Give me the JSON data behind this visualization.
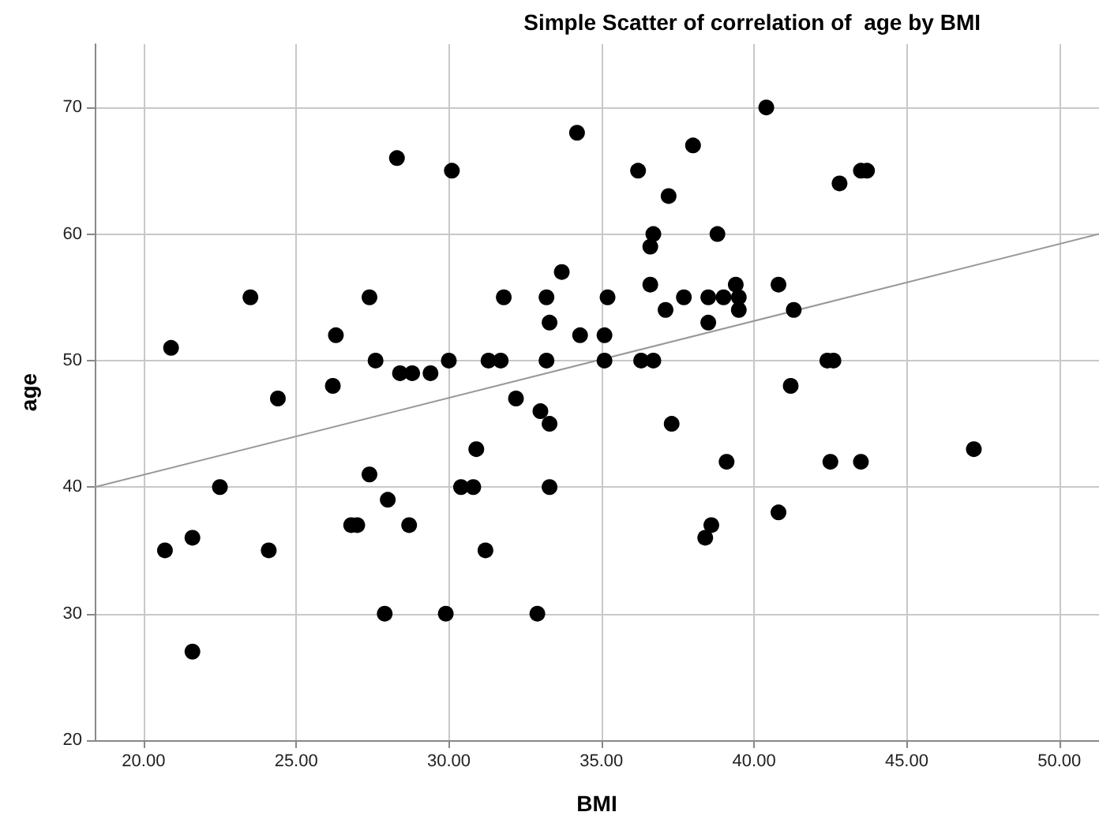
{
  "chart_data": {
    "type": "scatter",
    "title": "Simple Scatter of correlation of  age by BMI",
    "xlabel": "BMI",
    "ylabel": "age",
    "xlim": [
      18.4,
      51.3
    ],
    "ylim": [
      20,
      75
    ],
    "xticks": [
      {
        "value": 20,
        "label": "20.00"
      },
      {
        "value": 25,
        "label": "25.00"
      },
      {
        "value": 30,
        "label": "30.00"
      },
      {
        "value": 35,
        "label": "35.00"
      },
      {
        "value": 40,
        "label": "40.00"
      },
      {
        "value": 45,
        "label": "45.00"
      },
      {
        "value": 50,
        "label": "50.00"
      }
    ],
    "yticks": [
      20,
      30,
      40,
      50,
      60,
      70
    ],
    "grid": true,
    "marker": "circle",
    "series": [
      {
        "color": "#000000",
        "x": [
          20.7,
          20.9,
          21.6,
          21.6,
          22.5,
          23.5,
          24.1,
          24.4,
          26.2,
          26.3,
          26.8,
          27.0,
          27.4,
          27.4,
          27.6,
          27.9,
          28.0,
          28.3,
          28.4,
          28.7,
          28.8,
          29.4,
          29.9,
          30.0,
          30.1,
          30.4,
          30.8,
          30.9,
          31.2,
          31.3,
          31.7,
          31.8,
          32.2,
          32.9,
          33.0,
          33.2,
          33.2,
          33.3,
          33.3,
          33.3,
          33.7,
          34.2,
          34.3,
          35.1,
          35.1,
          35.2,
          36.2,
          36.3,
          36.6,
          36.6,
          36.7,
          36.7,
          37.1,
          37.2,
          37.3,
          37.7,
          38.0,
          38.4,
          38.5,
          38.5,
          38.6,
          38.8,
          39.0,
          39.1,
          39.4,
          39.5,
          39.5,
          40.4,
          40.8,
          40.8,
          41.2,
          41.3,
          42.4,
          42.5,
          42.6,
          42.8,
          43.5,
          43.5,
          43.7,
          47.2
        ],
        "values": [
          35,
          51,
          36,
          27,
          40,
          55,
          35,
          47,
          48,
          52,
          37,
          37,
          55,
          41,
          50,
          30,
          39,
          66,
          49,
          37,
          49,
          49,
          30,
          50,
          65,
          40,
          40,
          43,
          35,
          50,
          50,
          55,
          47,
          30,
          46,
          55,
          50,
          53,
          45,
          40,
          57,
          68,
          52,
          52,
          50,
          55,
          65,
          50,
          56,
          59,
          60,
          50,
          54,
          63,
          45,
          55,
          67,
          36,
          55,
          53,
          37,
          60,
          55,
          42,
          56,
          55,
          54,
          70,
          56,
          38,
          48,
          54,
          50,
          42,
          50,
          64,
          42,
          65,
          65,
          43
        ]
      },
      {
        "type": "line",
        "color": "#999999",
        "marker": "none",
        "x": [
          18.4,
          51.3
        ],
        "values": [
          40,
          60
        ]
      }
    ]
  }
}
